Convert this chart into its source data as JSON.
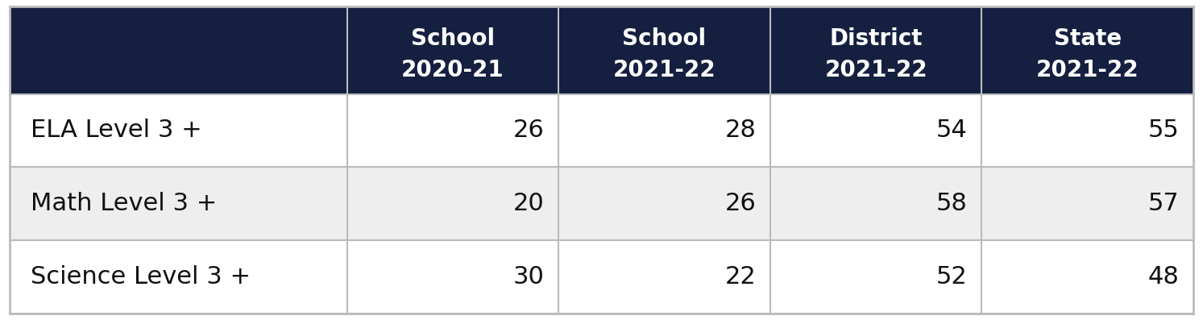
{
  "col_headers": [
    [
      "School",
      "2020-21"
    ],
    [
      "School",
      "2021-22"
    ],
    [
      "District",
      "2021-22"
    ],
    [
      "State",
      "2021-22"
    ]
  ],
  "row_labels": [
    "ELA Level 3 +",
    "Math Level 3 +",
    "Science Level 3 +"
  ],
  "values": [
    [
      26,
      28,
      54,
      55
    ],
    [
      20,
      26,
      58,
      57
    ],
    [
      30,
      22,
      52,
      48
    ]
  ],
  "header_bg": "#152040",
  "header_text_color": "#ffffff",
  "row_bg_even": "#ffffff",
  "row_bg_odd": "#eeeeee",
  "row_text_color": "#111111",
  "border_color": "#bbbbbb",
  "header_fontsize": 20,
  "label_fontsize": 22,
  "value_fontsize": 22,
  "fig_width": 14.93,
  "fig_height": 3.97,
  "dpi": 100
}
